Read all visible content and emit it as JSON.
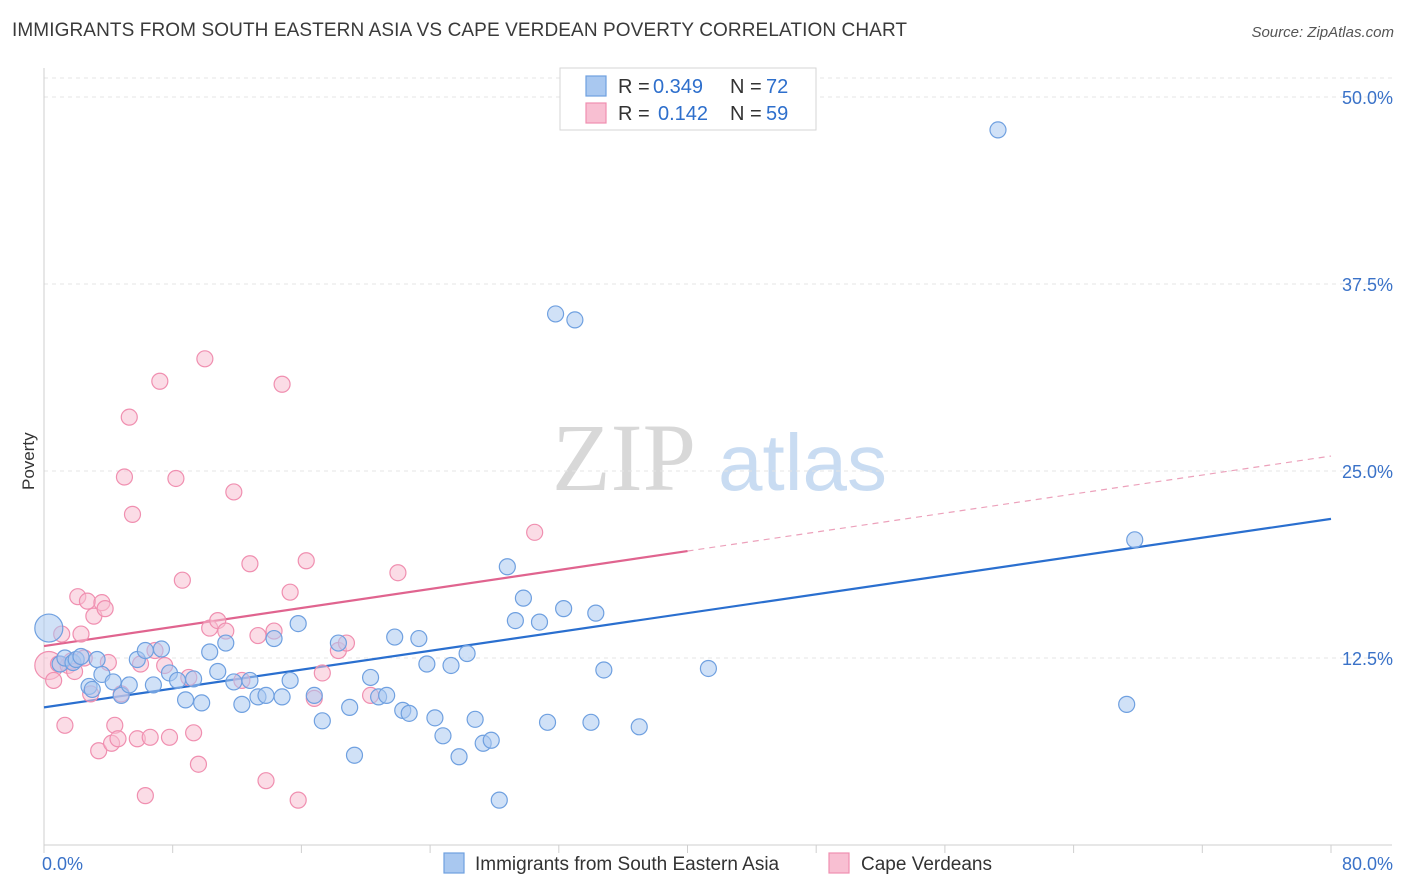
{
  "chart_data": {
    "type": "scatter",
    "title": "IMMIGRANTS FROM SOUTH EASTERN ASIA VS CAPE VERDEAN POVERTY CORRELATION CHART",
    "source": "Source: ZipAtlas.com",
    "xlabel": "",
    "ylabel": "Poverty",
    "xlim": [
      0,
      80
    ],
    "ylim": [
      0,
      50
    ],
    "x_tick_labels": [
      "0.0%",
      "80.0%"
    ],
    "y_ticks": [
      {
        "value": 12.5,
        "label": "12.5%"
      },
      {
        "value": 25.0,
        "label": "25.0%"
      },
      {
        "value": 37.5,
        "label": "37.5%"
      },
      {
        "value": 50.0,
        "label": "50.0%"
      }
    ],
    "watermark": {
      "zip": "ZIP",
      "atlas": "atlas"
    },
    "legend": {
      "r_label": "R = ",
      "n_label": "N = ",
      "entries": [
        {
          "series": "Immigrants from South Eastern Asia",
          "r": "0.349",
          "n": "72"
        },
        {
          "series": "Cape Verdeans",
          "r": "0.142",
          "n": "59"
        }
      ]
    },
    "series": [
      {
        "name": "Immigrants from South Eastern Asia",
        "color": "#6fa0e0",
        "fill": "#a9c8f0",
        "line_color": "#2a6fcf",
        "trend": {
          "x0": 0,
          "y0": 9.2,
          "x1": 80,
          "y1": 21.8,
          "dashed_from": null
        },
        "points": [
          [
            0.3,
            14.5
          ],
          [
            1.0,
            12.1
          ],
          [
            1.3,
            12.5
          ],
          [
            1.8,
            12.2
          ],
          [
            2.0,
            12.4
          ],
          [
            2.3,
            12.6
          ],
          [
            2.8,
            10.6
          ],
          [
            3.0,
            10.4
          ],
          [
            3.3,
            12.4
          ],
          [
            3.6,
            11.4
          ],
          [
            4.3,
            10.9
          ],
          [
            4.8,
            10.0
          ],
          [
            5.3,
            10.7
          ],
          [
            5.8,
            12.4
          ],
          [
            6.3,
            13.0
          ],
          [
            6.8,
            10.7
          ],
          [
            7.3,
            13.1
          ],
          [
            7.8,
            11.5
          ],
          [
            8.3,
            11.0
          ],
          [
            8.8,
            9.7
          ],
          [
            9.3,
            11.1
          ],
          [
            9.8,
            9.5
          ],
          [
            10.3,
            12.9
          ],
          [
            10.8,
            11.6
          ],
          [
            11.3,
            13.5
          ],
          [
            11.8,
            10.9
          ],
          [
            12.3,
            9.4
          ],
          [
            12.8,
            11.0
          ],
          [
            13.3,
            9.9
          ],
          [
            13.8,
            10.0
          ],
          [
            14.3,
            13.8
          ],
          [
            14.8,
            9.9
          ],
          [
            15.3,
            11.0
          ],
          [
            15.8,
            14.8
          ],
          [
            16.8,
            10.0
          ],
          [
            17.3,
            8.3
          ],
          [
            18.3,
            13.5
          ],
          [
            19.0,
            9.2
          ],
          [
            19.3,
            6.0
          ],
          [
            20.3,
            11.2
          ],
          [
            20.8,
            9.9
          ],
          [
            21.3,
            10.0
          ],
          [
            21.8,
            13.9
          ],
          [
            22.3,
            9.0
          ],
          [
            22.7,
            8.8
          ],
          [
            23.3,
            13.8
          ],
          [
            23.8,
            12.1
          ],
          [
            24.3,
            8.5
          ],
          [
            24.8,
            7.3
          ],
          [
            25.3,
            12.0
          ],
          [
            25.8,
            5.9
          ],
          [
            26.3,
            12.8
          ],
          [
            26.8,
            8.4
          ],
          [
            27.3,
            6.8
          ],
          [
            27.8,
            7.0
          ],
          [
            28.3,
            3.0
          ],
          [
            28.8,
            18.6
          ],
          [
            29.3,
            15.0
          ],
          [
            29.8,
            16.5
          ],
          [
            30.8,
            14.9
          ],
          [
            31.3,
            8.2
          ],
          [
            31.8,
            35.5
          ],
          [
            32.3,
            15.8
          ],
          [
            33.0,
            35.1
          ],
          [
            34.0,
            8.2
          ],
          [
            34.3,
            15.5
          ],
          [
            34.8,
            11.7
          ],
          [
            37.0,
            7.9
          ],
          [
            41.3,
            11.8
          ],
          [
            59.3,
            47.8
          ],
          [
            67.3,
            9.4
          ],
          [
            67.8,
            20.4
          ]
        ]
      },
      {
        "name": "Cape Verdeans",
        "color": "#f08fb0",
        "fill": "#f8bfd2",
        "line_color": "#e0648f",
        "trend": {
          "x0": 0,
          "y0": 13.3,
          "x1": 80,
          "y1": 26.0,
          "dashed_from": 40
        },
        "points": [
          [
            0.3,
            12.0
          ],
          [
            0.6,
            11.0
          ],
          [
            0.9,
            12.1
          ],
          [
            1.1,
            14.1
          ],
          [
            1.3,
            8.0
          ],
          [
            1.5,
            12.0
          ],
          [
            1.7,
            12.3
          ],
          [
            1.9,
            11.6
          ],
          [
            2.1,
            16.6
          ],
          [
            2.3,
            14.1
          ],
          [
            2.5,
            12.5
          ],
          [
            2.7,
            16.3
          ],
          [
            2.9,
            10.1
          ],
          [
            3.1,
            15.3
          ],
          [
            3.4,
            6.3
          ],
          [
            3.6,
            16.2
          ],
          [
            3.8,
            15.8
          ],
          [
            4.0,
            12.2
          ],
          [
            4.2,
            6.8
          ],
          [
            4.4,
            8.0
          ],
          [
            4.6,
            7.1
          ],
          [
            4.8,
            10.1
          ],
          [
            5.0,
            24.6
          ],
          [
            5.3,
            28.6
          ],
          [
            5.5,
            22.1
          ],
          [
            5.8,
            7.1
          ],
          [
            6.0,
            12.1
          ],
          [
            6.3,
            3.3
          ],
          [
            6.6,
            7.2
          ],
          [
            6.9,
            13.0
          ],
          [
            7.2,
            31.0
          ],
          [
            7.5,
            12.0
          ],
          [
            7.8,
            7.2
          ],
          [
            8.2,
            24.5
          ],
          [
            8.6,
            17.7
          ],
          [
            9.0,
            11.2
          ],
          [
            9.3,
            7.5
          ],
          [
            9.6,
            5.4
          ],
          [
            10.0,
            32.5
          ],
          [
            10.3,
            14.5
          ],
          [
            10.8,
            15.0
          ],
          [
            11.3,
            14.3
          ],
          [
            11.8,
            23.6
          ],
          [
            12.3,
            11.0
          ],
          [
            12.8,
            18.8
          ],
          [
            13.3,
            14.0
          ],
          [
            13.8,
            4.3
          ],
          [
            14.3,
            14.3
          ],
          [
            14.8,
            30.8
          ],
          [
            15.3,
            16.9
          ],
          [
            15.8,
            3.0
          ],
          [
            16.3,
            19.0
          ],
          [
            16.8,
            9.8
          ],
          [
            17.3,
            11.5
          ],
          [
            18.3,
            13.0
          ],
          [
            18.8,
            13.5
          ],
          [
            20.3,
            10.0
          ],
          [
            22.0,
            18.2
          ],
          [
            30.5,
            20.9
          ]
        ]
      }
    ]
  }
}
